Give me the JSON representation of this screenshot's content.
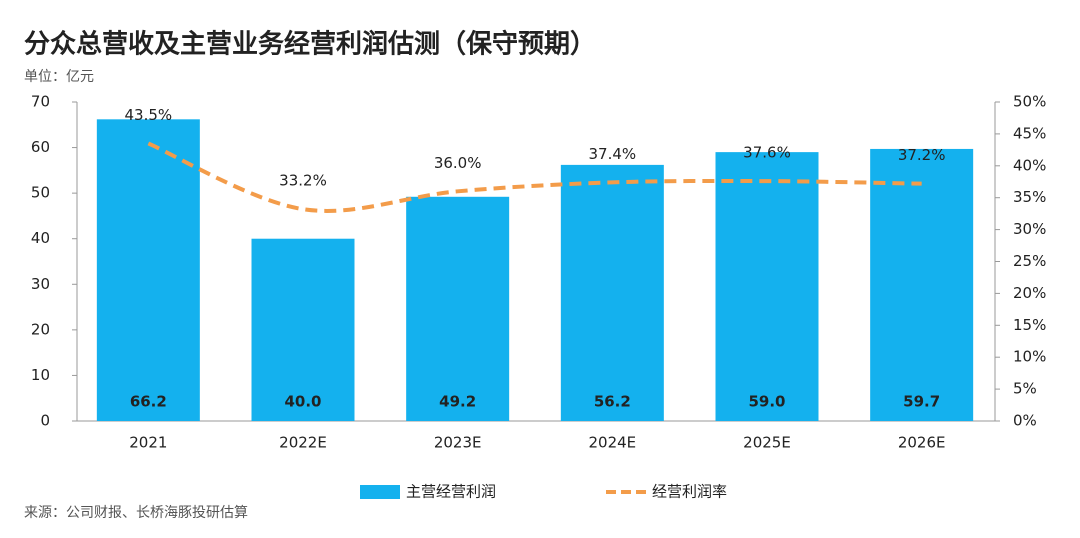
{
  "chart_data": {
    "type": "bar",
    "title": "分众总营收及主营业务经营利润估测（保守预期）",
    "subtitle": "单位：亿元",
    "source": "来源：公司财报、长桥海豚投研估算",
    "categories": [
      "2021",
      "2022E",
      "2023E",
      "2024E",
      "2025E",
      "2026E"
    ],
    "series": [
      {
        "name": "主营经营利润",
        "color": "#14b1ee",
        "type": "bar",
        "values": [
          66.2,
          40.0,
          49.2,
          56.2,
          59.0,
          59.7
        ],
        "value_labels": [
          "66.2",
          "40.0",
          "49.2",
          "56.2",
          "59.0",
          "59.7"
        ]
      },
      {
        "name": "经营利润率",
        "color": "#f39c4a",
        "type": "line",
        "axis": "y2",
        "values": [
          43.5,
          33.2,
          36.0,
          37.4,
          37.6,
          37.2
        ],
        "value_labels": [
          "43.5%",
          "33.2%",
          "36.0%",
          "37.4%",
          "37.6%",
          "37.2%"
        ]
      }
    ],
    "ylim": [
      0,
      70
    ],
    "yticks": [
      0,
      10,
      20,
      30,
      40,
      50,
      60,
      70
    ],
    "y2lim": [
      0,
      50
    ],
    "y2ticks": [
      {
        "value": 0,
        "label": "0%"
      },
      {
        "value": 5,
        "label": "5%"
      },
      {
        "value": 10,
        "label": "10%"
      },
      {
        "value": 15,
        "label": "15%"
      },
      {
        "value": 20,
        "label": "20%"
      },
      {
        "value": 25,
        "label": "25%"
      },
      {
        "value": 30,
        "label": "30%"
      },
      {
        "value": 35,
        "label": "35%"
      },
      {
        "value": 40,
        "label": "40%"
      },
      {
        "value": 45,
        "label": "45%"
      },
      {
        "value": 50,
        "label": "50%"
      }
    ],
    "grid": false,
    "legend": "bottom"
  }
}
